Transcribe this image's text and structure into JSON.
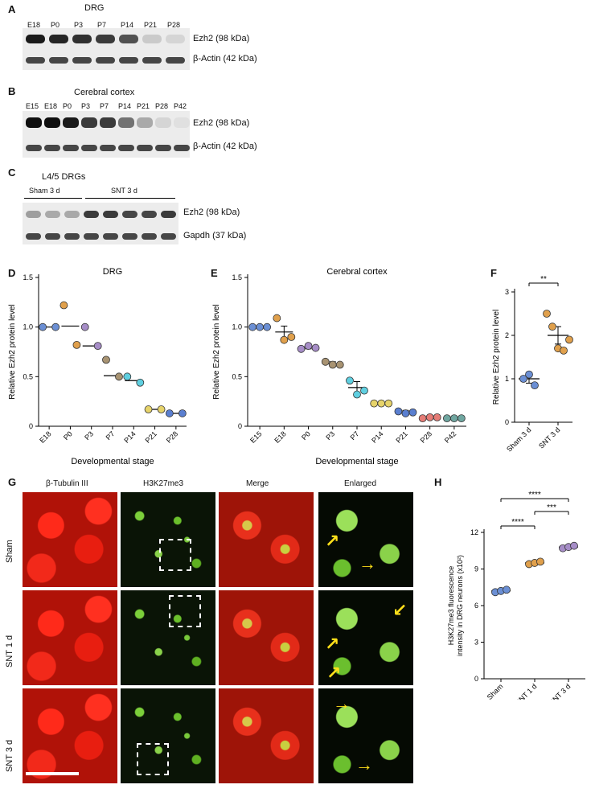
{
  "panels": {
    "A": {
      "letter": "A",
      "title": "DRG",
      "lanes": [
        "E18",
        "P0",
        "P3",
        "P7",
        "P14",
        "P21",
        "P28"
      ],
      "ezh2_intensity": [
        0.95,
        0.9,
        0.85,
        0.8,
        0.7,
        0.15,
        0.1
      ],
      "bands": [
        "Ezh2 (98 kDa)",
        "β-Actin (42 kDa)"
      ]
    },
    "B": {
      "letter": "B",
      "title": "Cerebral cortex",
      "lanes": [
        "E15",
        "E18",
        "P0",
        "P3",
        "P7",
        "P14",
        "P21",
        "P28",
        "P42"
      ],
      "ezh2_intensity": [
        1.0,
        1.0,
        0.95,
        0.8,
        0.8,
        0.55,
        0.3,
        0.1,
        0.05
      ],
      "bands": [
        "Ezh2 (98 kDa)",
        "β-Actin (42 kDa)"
      ]
    },
    "C": {
      "letter": "C",
      "title": "L4/5 DRGs",
      "groups": [
        "Sham 3 d",
        "SNT 3 d"
      ],
      "ezh2_intensity": [
        0.35,
        0.3,
        0.3,
        0.8,
        0.8,
        0.75,
        0.75,
        0.8
      ],
      "bands": [
        "Ezh2 (98 kDa)",
        "Gapdh (37 kDa)"
      ]
    },
    "D": {
      "letter": "D"
    },
    "E": {
      "letter": "E"
    },
    "F": {
      "letter": "F"
    },
    "G": {
      "letter": "G",
      "columns": [
        "β-Tubulin III",
        "H3K27me3",
        "Merge",
        "Enlarged"
      ],
      "rows": [
        "Sham",
        "SNT 1 d",
        "SNT 3 d"
      ]
    },
    "H": {
      "letter": "H"
    }
  },
  "chart_data": [
    {
      "id": "D",
      "type": "scatter",
      "title": "DRG",
      "xlabel": "Developmental stage",
      "ylabel": "Relative Ezh2 protein level",
      "categories": [
        "E18",
        "P0",
        "P3",
        "P7",
        "P14",
        "P21",
        "P28"
      ],
      "yticks": [
        "0",
        "0.5",
        "1.0",
        "1.5"
      ],
      "ylim": [
        0,
        1.5
      ],
      "means": [
        1.0,
        1.01,
        0.81,
        0.51,
        0.46,
        0.17,
        0.13
      ],
      "points": [
        [
          1.0,
          1.0
        ],
        [
          1.22,
          0.82
        ],
        [
          1.0,
          0.81
        ],
        [
          0.67,
          0.5
        ],
        [
          0.5,
          0.44
        ],
        [
          0.17,
          0.17
        ],
        [
          0.13,
          0.13
        ]
      ],
      "colors": [
        "#6b8fd4",
        "#e0a04c",
        "#a68dc7",
        "#a89372",
        "#5fcfe0",
        "#e6d36a",
        "#5a7fd0"
      ]
    },
    {
      "id": "E",
      "type": "scatter",
      "title": "Cerebral cortex",
      "xlabel": "Developmental stage",
      "ylabel": "Relative Ezh2 protein level",
      "categories": [
        "E15",
        "E18",
        "P0",
        "P3",
        "P7",
        "P14",
        "P21",
        "P28",
        "P42"
      ],
      "yticks": [
        "0",
        "0.5",
        "1.0",
        "1.5"
      ],
      "ylim": [
        0,
        1.5
      ],
      "means": [
        1.0,
        0.95,
        0.8,
        0.63,
        0.39,
        0.23,
        0.14,
        0.09,
        0.08
      ],
      "sems": [
        0,
        0.06,
        0.02,
        0.02,
        0.06,
        0.01,
        0.02,
        0.01,
        0.01
      ],
      "points": [
        [
          1.0,
          1.0,
          1.0
        ],
        [
          1.09,
          0.87,
          0.9
        ],
        [
          0.78,
          0.81,
          0.79
        ],
        [
          0.65,
          0.62,
          0.62
        ],
        [
          0.46,
          0.32,
          0.36
        ],
        [
          0.23,
          0.23,
          0.23
        ],
        [
          0.15,
          0.13,
          0.14
        ],
        [
          0.08,
          0.09,
          0.09
        ],
        [
          0.08,
          0.08,
          0.08
        ]
      ],
      "colors": [
        "#6b8fd4",
        "#e0a04c",
        "#a68dc7",
        "#a89372",
        "#5fcfe0",
        "#e6d36a",
        "#5a7fd0",
        "#e57c76",
        "#6fa6a0"
      ]
    },
    {
      "id": "F",
      "type": "scatter",
      "xlabel": "",
      "ylabel": "Relative Ezh2 protein level",
      "categories": [
        "Sham 3 d",
        "SNT 3 d"
      ],
      "yticks": [
        "0",
        "1",
        "2",
        "3"
      ],
      "ylim": [
        0,
        3
      ],
      "means": [
        1.0,
        2.0
      ],
      "sems": [
        0.1,
        0.2
      ],
      "points": [
        [
          1.0,
          1.1,
          0.85
        ],
        [
          2.5,
          2.2,
          1.7,
          1.65,
          1.9
        ]
      ],
      "colors": [
        "#6b8fd4",
        "#e0a04c"
      ],
      "significance": [
        {
          "pair": [
            0,
            1
          ],
          "label": "**"
        }
      ]
    },
    {
      "id": "H",
      "type": "scatter",
      "xlabel": "",
      "ylabel": "H3K27me3 fluorescence intensity in DRG neurons (x10²)",
      "ylabel_lines": [
        "H3K27me3 fluorescence",
        "intensity in DRG neurons (x10²)"
      ],
      "categories": [
        "Sham",
        "SNT 1 d",
        "SNT 3 d"
      ],
      "yticks": [
        "0",
        "3",
        "6",
        "9",
        "12"
      ],
      "ylim": [
        0,
        12
      ],
      "means": [
        7.2,
        9.5,
        10.8
      ],
      "sems": [
        0.1,
        0.12,
        0.1
      ],
      "points": [
        [
          7.1,
          7.2,
          7.3
        ],
        [
          9.4,
          9.5,
          9.6
        ],
        [
          10.7,
          10.8,
          10.9
        ]
      ],
      "colors": [
        "#6b8fd4",
        "#e0a04c",
        "#a68dc7"
      ],
      "significance": [
        {
          "pair": [
            0,
            1
          ],
          "label": "****"
        },
        {
          "pair": [
            1,
            2
          ],
          "label": "***"
        },
        {
          "pair": [
            0,
            2
          ],
          "label": "****"
        }
      ]
    }
  ]
}
